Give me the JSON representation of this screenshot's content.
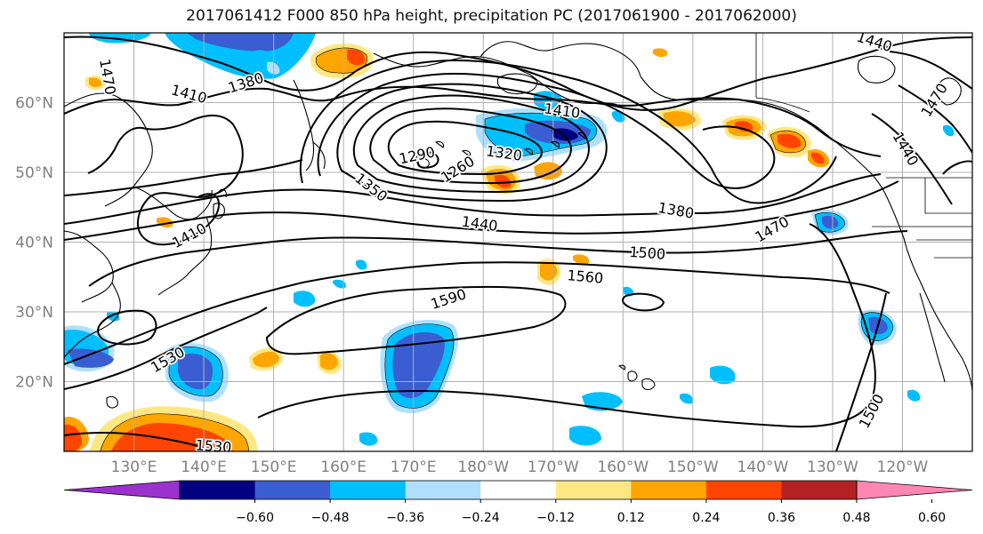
{
  "title": "2017061412 F000 850 hPa height, precipitation PC (2017061900 - 2017062000)",
  "map": {
    "lat_labels": [
      {
        "text": "60°N",
        "lat": 60
      },
      {
        "text": "50°N",
        "lat": 50
      },
      {
        "text": "40°N",
        "lat": 40
      },
      {
        "text": "30°N",
        "lat": 30
      },
      {
        "text": "20°N",
        "lat": 20
      }
    ],
    "lon_labels": [
      "130°E",
      "140°E",
      "150°E",
      "160°E",
      "170°E",
      "180°W",
      "170°W",
      "160°W",
      "150°W",
      "140°W",
      "130°W",
      "120°W"
    ],
    "lon_range": [
      120,
      250
    ],
    "lat_range": [
      10,
      70
    ],
    "contour_labels": [
      {
        "text": "1470",
        "lon": 126.3,
        "lat": 63.7,
        "rot": 80
      },
      {
        "text": "1410",
        "lon": 137.9,
        "lat": 61.3,
        "rot": 15
      },
      {
        "text": "1380",
        "lon": 146.0,
        "lat": 62.9,
        "rot": -18
      },
      {
        "text": "1440",
        "lon": 236.0,
        "lat": 68.8,
        "rot": 18
      },
      {
        "text": "1410",
        "lon": 191.3,
        "lat": 58.9,
        "rot": 8
      },
      {
        "text": "1290",
        "lon": 170.5,
        "lat": 52.5,
        "rot": -12
      },
      {
        "text": "1320",
        "lon": 183.0,
        "lat": 52.8,
        "rot": 8
      },
      {
        "text": "1260",
        "lon": 176.3,
        "lat": 50.5,
        "rot": -32
      },
      {
        "text": "1350",
        "lon": 164.0,
        "lat": 47.9,
        "rot": 38
      },
      {
        "text": "1380",
        "lon": 207.6,
        "lat": 44.6,
        "rot": 10
      },
      {
        "text": "1440",
        "lon": 179.5,
        "lat": 42.7,
        "rot": 8
      },
      {
        "text": "1410",
        "lon": 137.9,
        "lat": 41.0,
        "rot": -28
      },
      {
        "text": "1470",
        "lon": 221.3,
        "lat": 41.9,
        "rot": -30
      },
      {
        "text": "1470",
        "lon": 244.5,
        "lat": 60.4,
        "rot": -58
      },
      {
        "text": "1440",
        "lon": 240.5,
        "lat": 53.4,
        "rot": 60
      },
      {
        "text": "1500",
        "lon": 203.5,
        "lat": 38.5,
        "rot": 4
      },
      {
        "text": "1560",
        "lon": 194.6,
        "lat": 35.1,
        "rot": 5
      },
      {
        "text": "1590",
        "lon": 175.0,
        "lat": 31.9,
        "rot": -18
      },
      {
        "text": "1530",
        "lon": 134.8,
        "lat": 23.2,
        "rot": -30
      },
      {
        "text": "1530",
        "lon": 141.4,
        "lat": 10.8,
        "rot": 4
      },
      {
        "text": "1500",
        "lon": 235.5,
        "lat": 15.8,
        "rot": -62
      }
    ]
  },
  "colorbar": {
    "tick_labels": [
      "−0.60",
      "−0.48",
      "−0.36",
      "−0.24",
      "−0.12",
      "0.12",
      "0.24",
      "0.36",
      "0.48",
      "0.60"
    ],
    "colors": [
      "#9b32cd",
      "#000080",
      "#3a5ed2",
      "#00bfff",
      "#b0e0ff",
      "#ffffff",
      "#ffe884",
      "#ffa500",
      "#ff4500",
      "#b22222",
      "#ff87b2"
    ]
  },
  "legend_colors": {
    "dneg2": "#3a5ed2",
    "dneg1": "#00bfff",
    "neg0": "#b0e0ff",
    "pos1": "#ffa500",
    "pos2": "#ff4500",
    "pos0": "#ffe884",
    "dneg3": "#000080"
  }
}
